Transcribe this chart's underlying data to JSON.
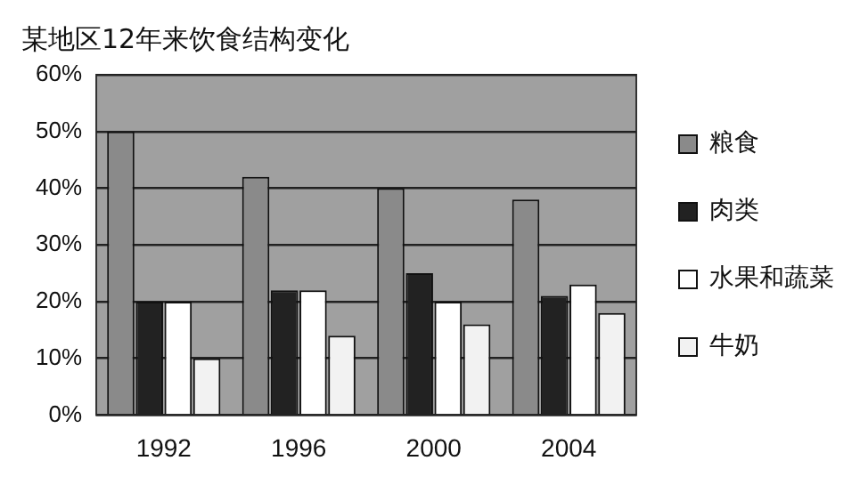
{
  "chart_data": {
    "type": "bar",
    "title": "某地区12年来饮食结构变化",
    "categories": [
      "1992",
      "1996",
      "2000",
      "2004"
    ],
    "series": [
      {
        "name": "粮食",
        "color": "#8a8a8a",
        "values": [
          50,
          42,
          40,
          38
        ]
      },
      {
        "name": "肉类",
        "color": "#222222",
        "values": [
          20,
          22,
          25,
          21
        ]
      },
      {
        "name": "水果和蔬菜",
        "color": "#ffffff",
        "values": [
          20,
          22,
          20,
          23
        ]
      },
      {
        "name": "牛奶",
        "color": "#f2f2f2",
        "values": [
          10,
          14,
          16,
          18
        ]
      }
    ],
    "ylim": [
      0,
      60
    ],
    "yticks": [
      {
        "value": 0,
        "label": "0%"
      },
      {
        "value": 10,
        "label": "10%"
      },
      {
        "value": 20,
        "label": "20%"
      },
      {
        "value": 30,
        "label": "30%"
      },
      {
        "value": 40,
        "label": "40%"
      },
      {
        "value": 50,
        "label": "50%"
      },
      {
        "value": 60,
        "label": "60%"
      }
    ],
    "grid": "y",
    "legend": "right"
  }
}
